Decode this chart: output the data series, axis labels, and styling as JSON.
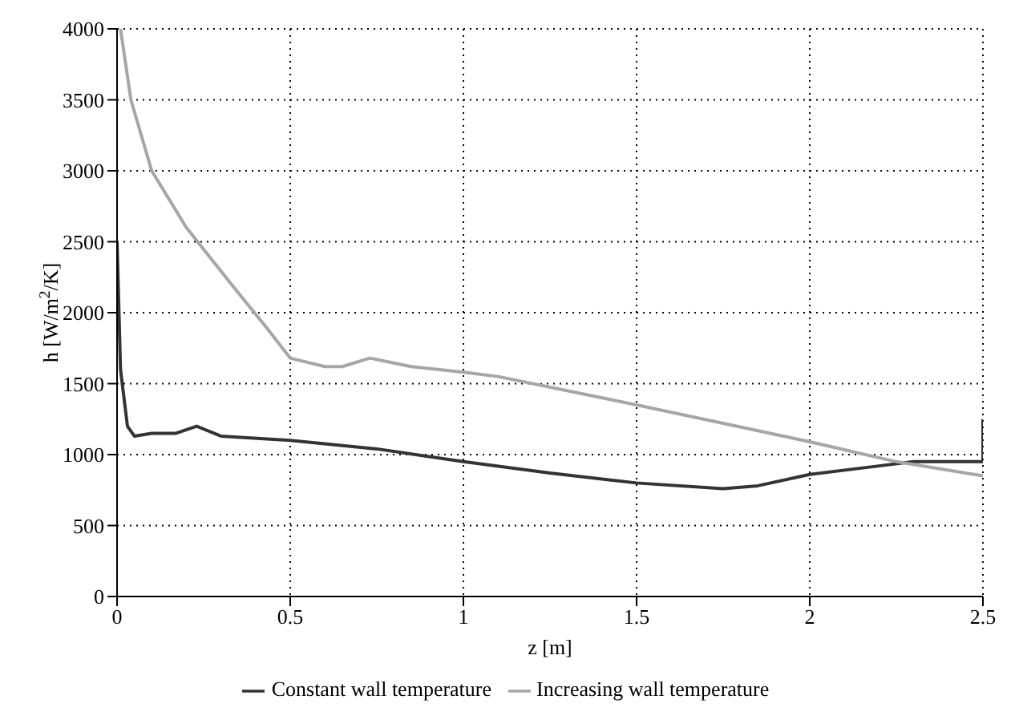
{
  "chart_data": {
    "type": "line",
    "xlabel": "z [m]",
    "ylabel": "h [W/m$^{2}$/K]",
    "xlim": [
      0,
      2.5
    ],
    "xticks": [
      0,
      0.5,
      1,
      1.5,
      2,
      2.5
    ],
    "ylim": [
      0,
      4000
    ],
    "yticks": [
      0,
      500,
      1000,
      1500,
      2000,
      2500,
      3000,
      3500,
      4000
    ],
    "grid": true,
    "legend": "bottom",
    "marker": "none",
    "line_style": "solid",
    "series": [
      {
        "name": "Constant wall temperature",
        "color": "#333333",
        "x": [
          0,
          0.01,
          0.03,
          0.05,
          0.1,
          0.17,
          0.23,
          0.3,
          0.5,
          0.75,
          1.0,
          1.25,
          1.5,
          1.75,
          1.85,
          2.0,
          2.2,
          2.3,
          2.49,
          2.5,
          2.5
        ],
        "values": [
          2500,
          1600,
          1200,
          1130,
          1150,
          1150,
          1200,
          1130,
          1100,
          1040,
          950,
          870,
          800,
          760,
          780,
          860,
          920,
          950,
          950,
          950,
          1250
        ]
      },
      {
        "name": "Increasing wall temperature",
        "color": "#a6a6a6",
        "x": [
          0.01,
          0.04,
          0.1,
          0.2,
          0.33,
          0.43,
          0.5,
          0.6,
          0.65,
          0.73,
          0.85,
          1.0,
          1.1,
          1.5,
          1.75,
          2.0,
          2.25,
          2.5
        ],
        "values": [
          4000,
          3500,
          3000,
          2600,
          2200,
          1900,
          1680,
          1620,
          1620,
          1680,
          1620,
          1580,
          1550,
          1350,
          1220,
          1090,
          950,
          850
        ]
      }
    ]
  }
}
